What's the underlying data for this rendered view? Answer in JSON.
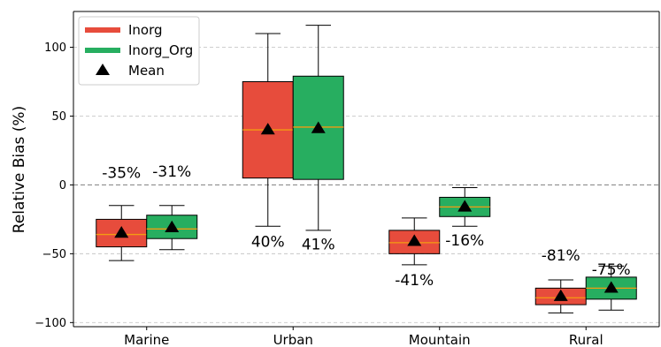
{
  "chart_data": {
    "type": "box",
    "ylabel": "Relative Bias (%)",
    "ylim": [
      -103,
      126
    ],
    "yticks": [
      -100,
      -50,
      0,
      50,
      100
    ],
    "grid": "horizontal dashed",
    "zero_line": "dashed",
    "legend_position": "top-left",
    "categories": [
      "Marine",
      "Urban",
      "Mountain",
      "Rural"
    ],
    "series": [
      {
        "name": "Inorg",
        "color": "#e74c3c",
        "boxes": [
          {
            "whislo": -55,
            "q1": -45,
            "med": -36,
            "q3": -25,
            "whishi": -15,
            "mean": -35
          },
          {
            "whislo": -30,
            "q1": 5,
            "med": 40,
            "q3": 75,
            "whishi": 110,
            "mean": 40
          },
          {
            "whislo": -58,
            "q1": -50,
            "med": -42,
            "q3": -33,
            "whislo2": null,
            "whishi": -24,
            "mean": -41
          },
          {
            "whislo": -93,
            "q1": -87,
            "med": -82,
            "q3": -75,
            "whishi": -69,
            "mean": -81
          }
        ]
      },
      {
        "name": "Inorg_Org",
        "color": "#27ae60",
        "boxes": [
          {
            "whislo": -47,
            "q1": -39,
            "med": -32,
            "q3": -22,
            "whishi": -15,
            "mean": -31
          },
          {
            "whislo": -33,
            "q1": 4,
            "med": 42,
            "q3": 79,
            "whishi": 116,
            "mean": 41
          },
          {
            "whislo": -30,
            "q1": -23,
            "med": -16,
            "q3": -9,
            "whishi": -2,
            "mean": -16
          },
          {
            "whislo": -91,
            "q1": -83,
            "med": -75,
            "q3": -67,
            "whishi": -59,
            "mean": -75
          }
        ]
      }
    ],
    "mean_marker": {
      "name": "Mean",
      "color": "#000000"
    },
    "median_color": "#f39c12",
    "annotations": [
      {
        "text": "-35%",
        "category": "Marine",
        "series": "Inorg",
        "y": 5
      },
      {
        "text": "-31%",
        "category": "Marine",
        "series": "Inorg_Org",
        "y": 6
      },
      {
        "text": "40%",
        "category": "Urban",
        "series": "Inorg",
        "y": -45
      },
      {
        "text": "41%",
        "category": "Urban",
        "series": "Inorg_Org",
        "y": -47
      },
      {
        "text": "-41%",
        "category": "Mountain",
        "series": "Inorg",
        "y": -73
      },
      {
        "text": "-16%",
        "category": "Mountain",
        "series": "Inorg_Org",
        "y": -44
      },
      {
        "text": "-81%",
        "category": "Rural",
        "series": "Inorg",
        "y": -55
      },
      {
        "text": "-75%",
        "category": "Rural",
        "series": "Inorg_Org",
        "y": -65
      }
    ]
  }
}
